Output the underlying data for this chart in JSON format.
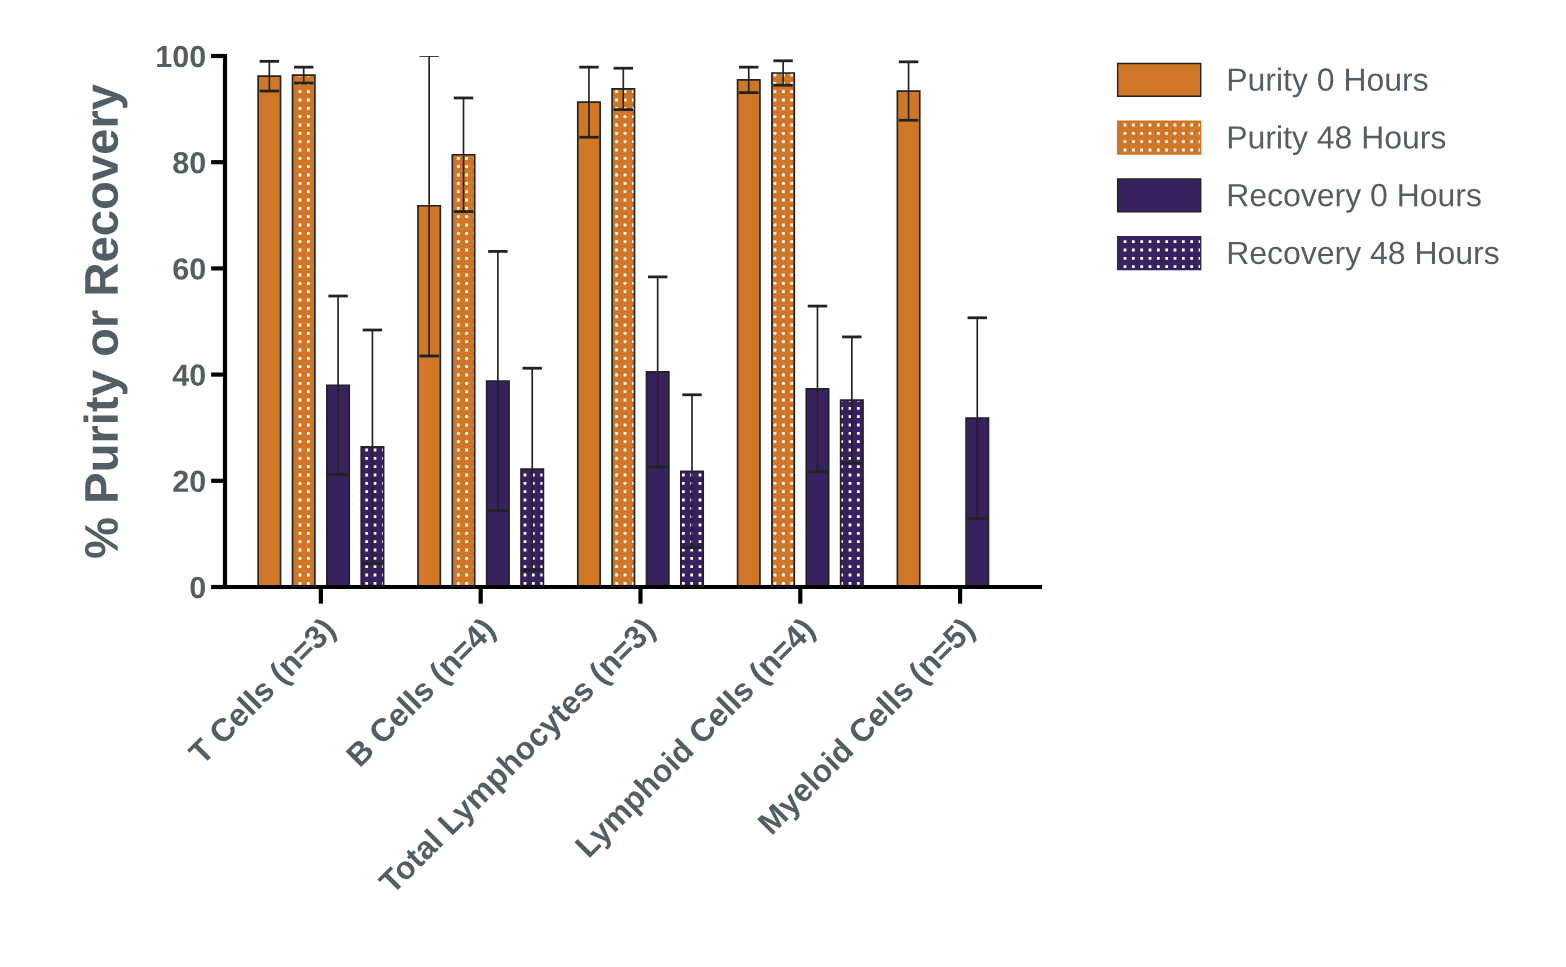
{
  "chart_data": {
    "type": "bar",
    "ylabel": "% Purity or Recovery",
    "categories": [
      "T Cells (n=3)",
      "B Cells (n=4)",
      "Total Lymphocytes (n=3)",
      "Lymphoid Cells (n=4)",
      "Myeloid Cells (n=5)"
    ],
    "series": [
      {
        "name": "Purity 0 Hours",
        "color": "#cf7627",
        "values": [
          96.2,
          71.8,
          91.3,
          95.5,
          93.4
        ],
        "errors": [
          2.8,
          28.3,
          6.6,
          2.4,
          5.5
        ]
      },
      {
        "name": "Purity 48 Hours",
        "color": "#cf7627",
        "values": [
          96.4,
          81.4,
          93.8,
          96.8,
          null
        ],
        "errors": [
          1.5,
          10.7,
          3.9,
          2.3,
          null
        ]
      },
      {
        "name": "Recovery 0 Hours",
        "color": "#37215f",
        "values": [
          38.0,
          38.8,
          40.5,
          37.3,
          31.8
        ],
        "errors": [
          16.8,
          24.4,
          17.9,
          15.6,
          18.9
        ]
      },
      {
        "name": "Recovery 48 Hours",
        "color": "#37215f",
        "values": [
          26.4,
          22.2,
          21.8,
          35.2,
          null
        ],
        "errors": [
          22.0,
          19.0,
          14.4,
          11.9,
          null
        ]
      }
    ],
    "ylim": [
      0,
      100
    ],
    "yticks": [
      0,
      20,
      40,
      60,
      80,
      100
    ],
    "grid": false,
    "legend": "top right"
  }
}
